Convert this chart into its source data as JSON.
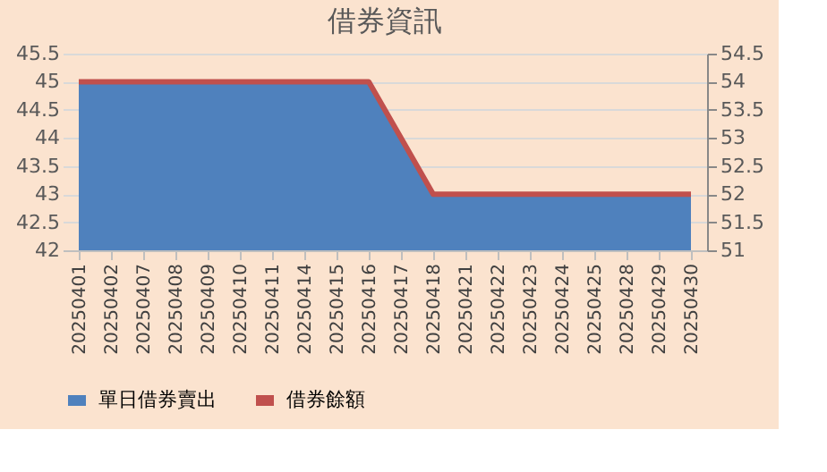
{
  "chart_data": {
    "type": "area",
    "title": "借券資訊",
    "categories": [
      "20250401",
      "20250402",
      "20250407",
      "20250408",
      "20250409",
      "20250410",
      "20250411",
      "20250414",
      "20250415",
      "20250416",
      "20250417",
      "20250418",
      "20250421",
      "20250422",
      "20250423",
      "20250424",
      "20250425",
      "20250428",
      "20250429",
      "20250430"
    ],
    "series": [
      {
        "name": "單日借券賣出",
        "color": "#4f81bd",
        "values": [
          45,
          45,
          45,
          45,
          45,
          45,
          45,
          45,
          45,
          45,
          44,
          43,
          43,
          43,
          43,
          43,
          43,
          43,
          43,
          43
        ]
      },
      {
        "name": "借券餘額",
        "type": "line",
        "axis": "y2",
        "color": "#c0504d",
        "values": [
          54,
          54,
          54,
          54,
          54,
          54,
          54,
          54,
          54,
          54,
          53,
          52,
          52,
          52,
          52,
          52,
          52,
          52,
          52,
          52
        ]
      }
    ],
    "ylim": [
      42,
      45.5
    ],
    "yticks": [
      42,
      42.5,
      43,
      43.5,
      44,
      44.5,
      45,
      45.5
    ],
    "y2lim": [
      51,
      54.5
    ],
    "y2ticks": [
      51,
      51.5,
      52,
      52.5,
      53,
      53.5,
      54,
      54.5
    ],
    "grid": "y",
    "legend": "bottom"
  }
}
